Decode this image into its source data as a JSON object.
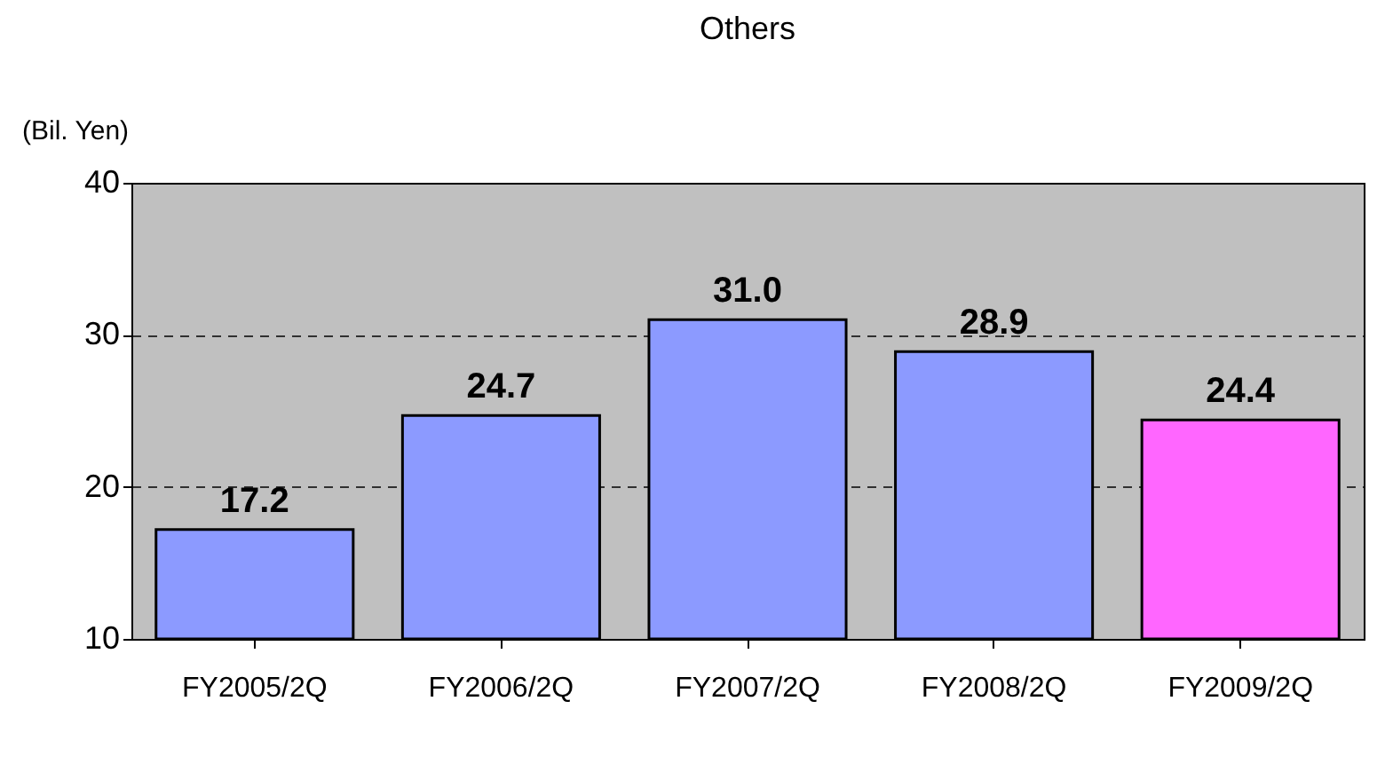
{
  "chart_data": {
    "type": "bar",
    "title": "Others",
    "ylabel": "(Bil. Yen)",
    "categories": [
      "FY2005/2Q",
      "FY2006/2Q",
      "FY2007/2Q",
      "FY2008/2Q",
      "FY2009/2Q"
    ],
    "values": [
      17.2,
      24.7,
      31.0,
      28.9,
      24.4
    ],
    "value_labels": [
      "17.2",
      "24.7",
      "31.0",
      "28.9",
      "24.4"
    ],
    "colors": [
      "#8c9aff",
      "#8c9aff",
      "#8c9aff",
      "#8c9aff",
      "#ff66ff"
    ],
    "ylim": [
      10,
      40
    ],
    "yticks": [
      10,
      20,
      30,
      40
    ],
    "grid": "y"
  }
}
